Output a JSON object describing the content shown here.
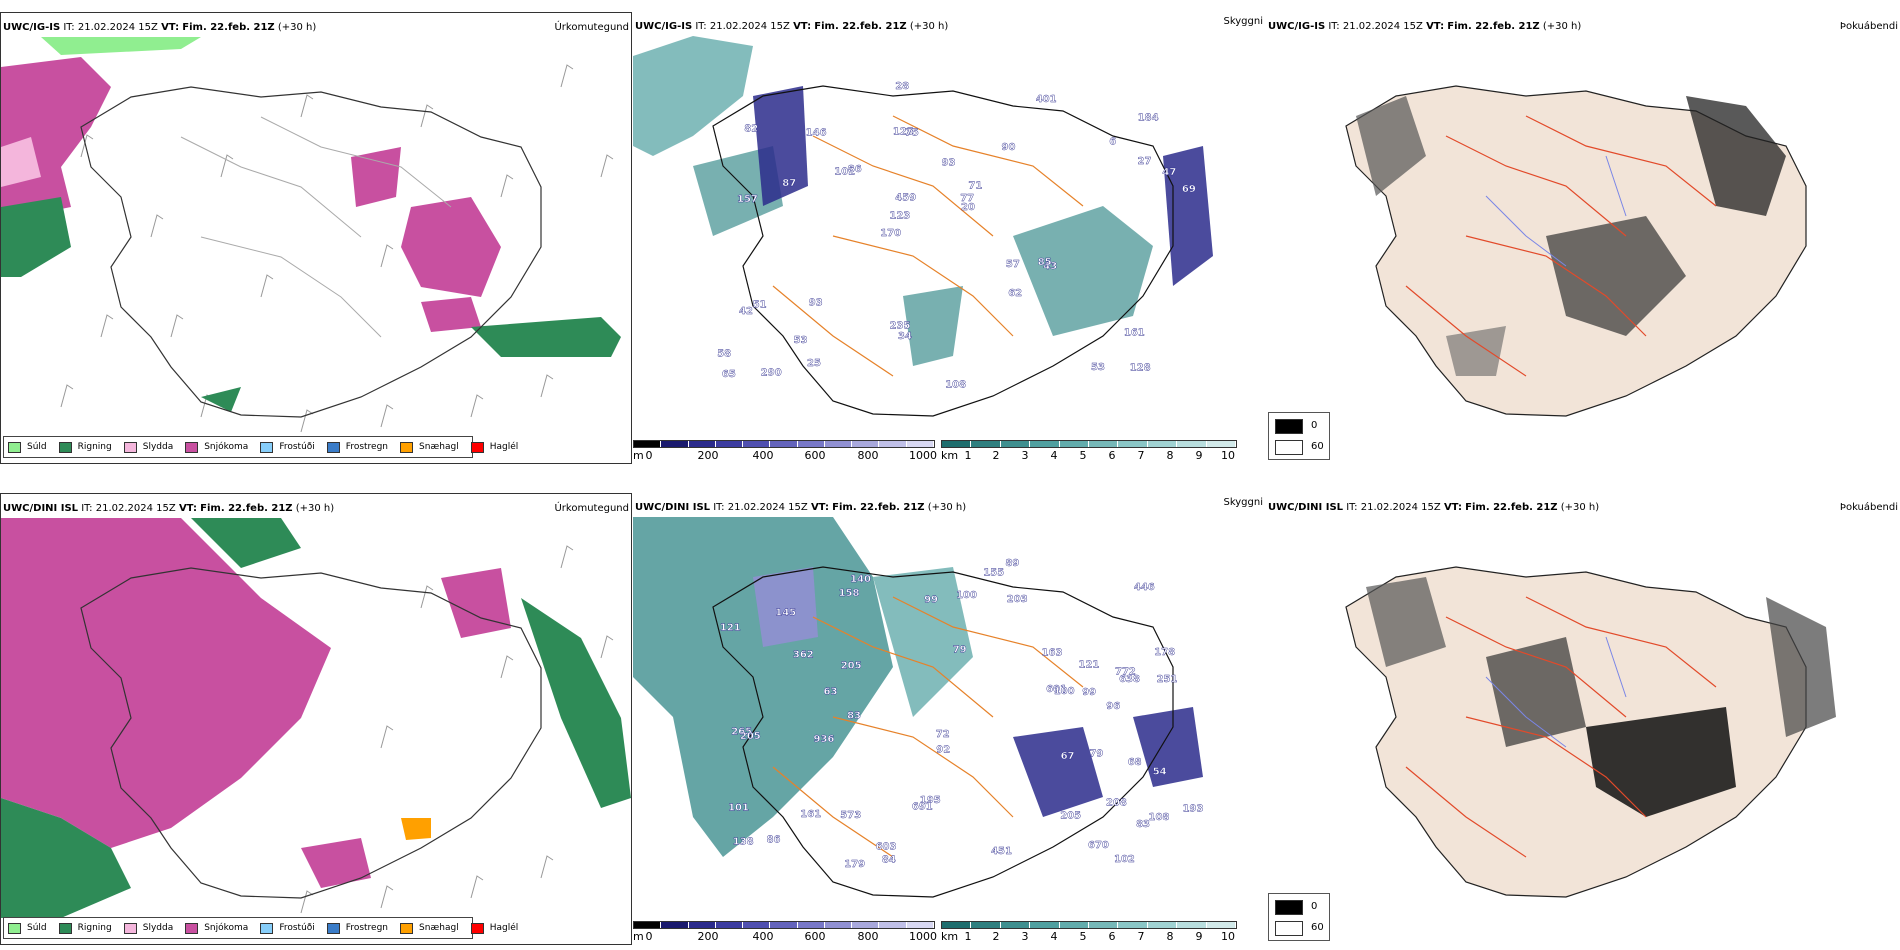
{
  "rows": [
    {
      "model": "UWC/IG-IS",
      "it_label": "IT:",
      "it_value": "21.02.2024 15Z",
      "vt_label": "VT:",
      "vt_value": "Fim. 22.feb. 21Z",
      "lead": "(+30 h)"
    },
    {
      "model": "UWC/DINI ISL",
      "it_label": "IT:",
      "it_value": "21.02.2024 15Z",
      "vt_label": "VT:",
      "vt_value": "Fim. 22.feb. 21Z",
      "lead": "(+30 h)"
    }
  ],
  "panel_titles": {
    "precip": "Úrkomutegund",
    "visibility": "Skyggni",
    "fog": "Þokuábendi"
  },
  "precip_legend": [
    {
      "label": "Súld",
      "color": "#90ee90"
    },
    {
      "label": "Rigning",
      "color": "#2e8b57"
    },
    {
      "label": "Slydda",
      "color": "#f4b6dc"
    },
    {
      "label": "Snjókoma",
      "color": "#c850a0"
    },
    {
      "label": "Frostúði",
      "color": "#87cefa"
    },
    {
      "label": "Frostregn",
      "color": "#3a7cc8"
    },
    {
      "label": "Snæhagl",
      "color": "#ffa000"
    },
    {
      "label": "Haglél",
      "color": "#ff0000"
    }
  ],
  "visibility_scale_m": {
    "unit": "m",
    "ticks": [
      "0",
      "200",
      "400",
      "600",
      "800",
      "1000"
    ],
    "colors": [
      "#000000",
      "#1a1a6e",
      "#2b2b8c",
      "#3c3ca0",
      "#5050b0",
      "#6464bc",
      "#7878c8",
      "#9090d2",
      "#a8a8dc",
      "#c0c0e8",
      "#d8d8f2"
    ]
  },
  "visibility_scale_km": {
    "unit": "km",
    "ticks": [
      "1",
      "2",
      "3",
      "4",
      "5",
      "6",
      "7",
      "8",
      "9",
      "10"
    ],
    "colors": [
      "#1f6e6e",
      "#2f7f7f",
      "#3f8f8f",
      "#50a0a0",
      "#62acac",
      "#76b8b8",
      "#8ac6c6",
      "#a0d2d2",
      "#b8dede",
      "#d2eaea"
    ]
  },
  "fog_key": {
    "items": [
      {
        "label": "0",
        "color": "#000000"
      },
      {
        "label": "60",
        "color": "#ffffff"
      }
    ]
  },
  "vis_labels_top": [
    "128",
    "157",
    "184",
    "170",
    "90",
    "290",
    "125",
    "93",
    "51",
    "86",
    "58",
    "53",
    "75",
    "71",
    "43",
    "82",
    "28",
    "69",
    "57",
    "27",
    "123",
    "235",
    "459",
    "146",
    "401",
    "93",
    "53",
    "161",
    "85",
    "108",
    "102",
    "87",
    "62",
    "25",
    "47",
    "77",
    "65",
    "34",
    "20",
    "42",
    "6"
  ],
  "vis_labels_bottom": [
    "208",
    "178",
    "108",
    "79",
    "138",
    "140",
    "772",
    "573",
    "446",
    "362",
    "251",
    "121",
    "96",
    "84",
    "101",
    "145",
    "83",
    "158",
    "195",
    "638",
    "265",
    "205",
    "451",
    "601",
    "603",
    "691",
    "155",
    "203",
    "163",
    "193",
    "936",
    "205",
    "179",
    "72",
    "68",
    "670",
    "100",
    "99",
    "102",
    "83",
    "79",
    "99",
    "100",
    "63",
    "54",
    "67",
    "86",
    "89",
    "205",
    "121",
    "161",
    "92"
  ]
}
